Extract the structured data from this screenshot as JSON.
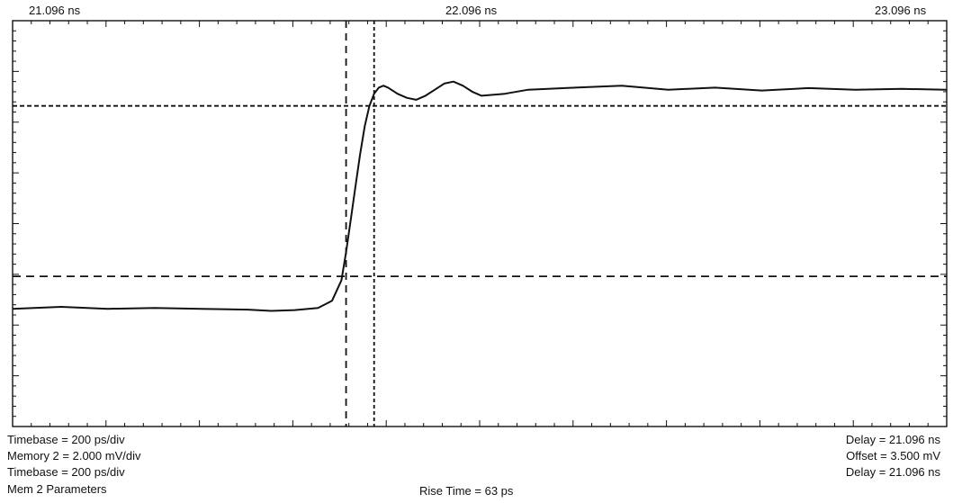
{
  "header": {
    "time_left": "21.096 ns",
    "time_center": "22.096 ns",
    "time_right": "23.096 ns"
  },
  "footer": {
    "left": [
      "Timebase = 200 ps/div",
      "Memory 2 = 2.000 mV/div",
      "Timebase = 200 ps/div",
      "Mem 2 Parameters"
    ],
    "right": [
      "Delay = 21.096 ns",
      "Offset = 3.500 mV",
      "Delay = 21.096 ns"
    ],
    "center": "Rise Time = 63 ps"
  },
  "chart_data": {
    "type": "line",
    "title": "",
    "xlabel": "",
    "ylabel": "",
    "x_unit": "ns",
    "xlim": [
      21.096,
      23.096
    ],
    "ylim": [
      0,
      1
    ],
    "grid": false,
    "series": [
      {
        "values_x": [
          21.096,
          21.2,
          21.3,
          21.4,
          21.5,
          21.6,
          21.65,
          21.7,
          21.75,
          21.78,
          21.8,
          21.81,
          21.82,
          21.83,
          21.84,
          21.85,
          21.86,
          21.87,
          21.88,
          21.89,
          21.9,
          21.92,
          21.94,
          21.96,
          21.98,
          22.0,
          22.02,
          22.04,
          22.06,
          22.08,
          22.1,
          22.15,
          22.2,
          22.3,
          22.4,
          22.5,
          22.6,
          22.7,
          22.8,
          22.9,
          23.0,
          23.096
        ],
        "values_y": [
          0.29,
          0.295,
          0.29,
          0.292,
          0.29,
          0.288,
          0.285,
          0.287,
          0.292,
          0.31,
          0.36,
          0.43,
          0.51,
          0.59,
          0.67,
          0.74,
          0.79,
          0.82,
          0.835,
          0.84,
          0.835,
          0.82,
          0.81,
          0.805,
          0.815,
          0.83,
          0.845,
          0.85,
          0.84,
          0.825,
          0.815,
          0.82,
          0.83,
          0.835,
          0.84,
          0.83,
          0.835,
          0.828,
          0.834,
          0.83,
          0.832,
          0.83
        ]
      }
    ],
    "cursors": {
      "horizontal_y": [
        0.37,
        0.79
      ],
      "vertical_x": [
        21.81,
        21.87
      ]
    },
    "divisions": {
      "x": 10,
      "y": 8,
      "minor_per_div": 5
    }
  }
}
